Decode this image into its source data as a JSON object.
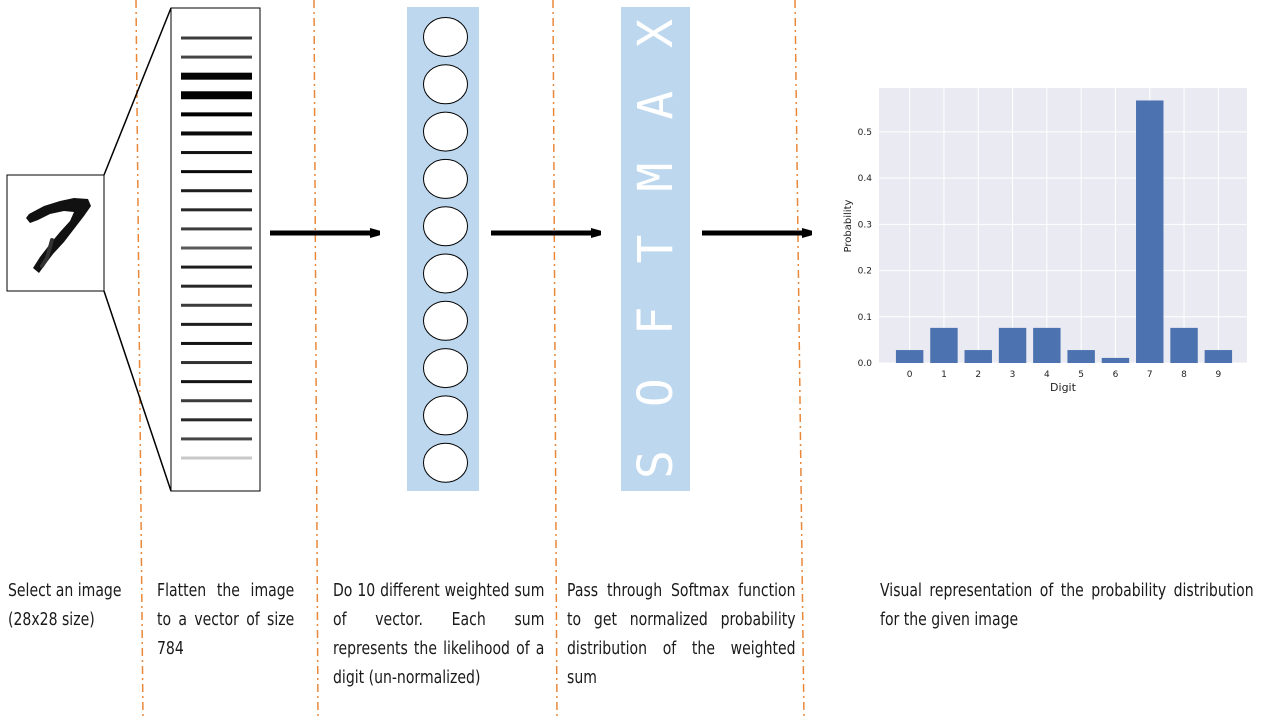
{
  "captions": {
    "step1": "Select an image (28x28 size)",
    "step2": "Flatten the image to a vector of size 784",
    "step3": "Do 10 different weighted sum of vector. Each sum represents the likelihood of a digit (un-normalized)",
    "step4": "Pass through Softmax function to get normalized probability distribution of the weighted sum",
    "step5": "Visual representation of the probability distribution for the given image"
  },
  "softmax_label": "SOFTMAX",
  "colors": {
    "separator": "#e8883a",
    "layer_panel": "#bcd7ee",
    "bar": "#4c72b0",
    "plot_bg": "#eaeaf2",
    "grid": "#ffffff"
  },
  "neuron_count": 10,
  "vector_stripes": [
    {
      "w": 3,
      "g": 60
    },
    {
      "w": 3,
      "g": 70
    },
    {
      "w": 7,
      "g": 5
    },
    {
      "w": 8,
      "g": 0
    },
    {
      "w": 4,
      "g": 0
    },
    {
      "w": 4,
      "g": 10
    },
    {
      "w": 3,
      "g": 20
    },
    {
      "w": 3,
      "g": 10
    },
    {
      "w": 3,
      "g": 30
    },
    {
      "w": 3,
      "g": 40
    },
    {
      "w": 3,
      "g": 60
    },
    {
      "w": 3,
      "g": 90
    },
    {
      "w": 3,
      "g": 30
    },
    {
      "w": 3,
      "g": 40
    },
    {
      "w": 3,
      "g": 60
    },
    {
      "w": 3,
      "g": 30
    },
    {
      "w": 3,
      "g": 20
    },
    {
      "w": 3,
      "g": 50
    },
    {
      "w": 3,
      "g": 20
    },
    {
      "w": 3,
      "g": 60
    },
    {
      "w": 3,
      "g": 40
    },
    {
      "w": 3,
      "g": 70
    },
    {
      "w": 3,
      "g": 200
    }
  ],
  "chart_data": {
    "type": "bar",
    "categories": [
      "0",
      "1",
      "2",
      "3",
      "4",
      "5",
      "6",
      "7",
      "8",
      "9"
    ],
    "values": [
      0.028,
      0.076,
      0.028,
      0.076,
      0.076,
      0.028,
      0.011,
      0.568,
      0.076,
      0.028
    ],
    "xlabel": "Digit",
    "ylabel": "Probability",
    "yticks": [
      0.0,
      0.1,
      0.2,
      0.3,
      0.4,
      0.5
    ],
    "ytick_labels": [
      "0.0",
      "0.1",
      "0.2",
      "0.3",
      "0.4",
      "0.5"
    ],
    "ylim": [
      0,
      0.595
    ],
    "grid": true
  }
}
